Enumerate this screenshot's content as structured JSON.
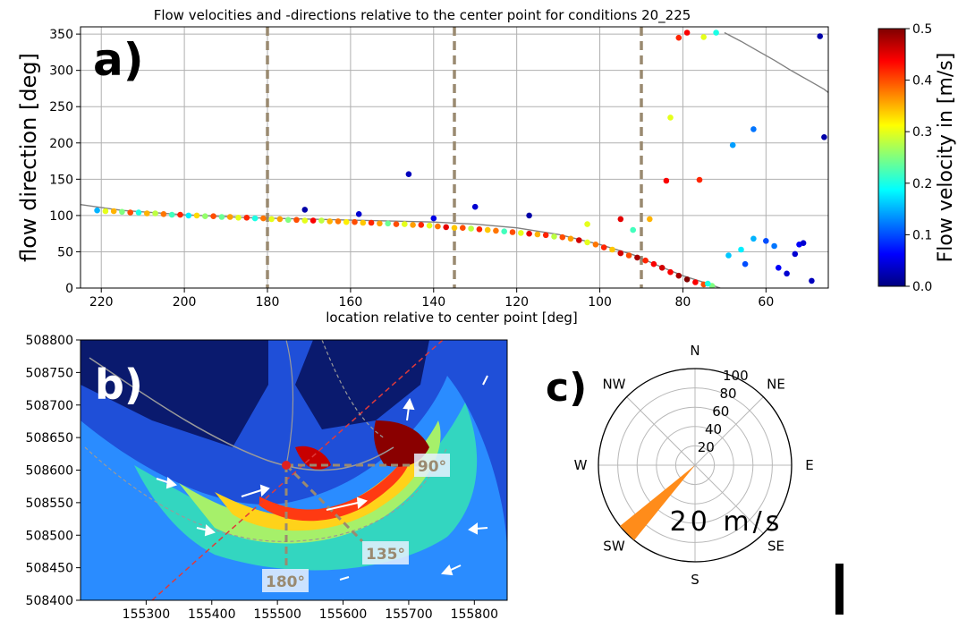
{
  "figure": {
    "panel_a_label": "a)",
    "panel_b_label": "b)",
    "panel_c_label": "c)"
  },
  "chart_data": [
    {
      "panel": "a",
      "type": "scatter",
      "title": "Flow velocities and -directions relative to the center point for conditions 20_225",
      "xlabel": "location relative to center point [deg]",
      "ylabel": "flow direction [deg]",
      "xlim": [
        225,
        45
      ],
      "ylim": [
        0,
        360
      ],
      "xticks": [
        220,
        200,
        180,
        160,
        140,
        120,
        100,
        80,
        60
      ],
      "yticks": [
        0,
        50,
        100,
        150,
        200,
        250,
        300,
        350
      ],
      "grid": true,
      "reference_lines_x": [
        180,
        135,
        90
      ],
      "curve_1": [
        [
          225,
          115
        ],
        [
          215,
          107
        ],
        [
          200,
          101
        ],
        [
          185,
          97
        ],
        [
          170,
          95
        ],
        [
          155,
          93
        ],
        [
          140,
          91
        ],
        [
          130,
          88
        ],
        [
          120,
          83
        ],
        [
          110,
          74
        ],
        [
          100,
          60
        ],
        [
          92,
          46
        ],
        [
          86,
          31
        ],
        [
          80,
          17
        ],
        [
          74,
          6
        ],
        [
          71,
          0
        ]
      ],
      "curve_2": [
        [
          70,
          352
        ],
        [
          66,
          340
        ],
        [
          62,
          327
        ],
        [
          58,
          314
        ],
        [
          54,
          300
        ],
        [
          50,
          287
        ],
        [
          46,
          274
        ],
        [
          44,
          265
        ]
      ],
      "colorbar": {
        "label": "Flow velocity in [m/s]",
        "min": 0.0,
        "max": 0.5,
        "ticks": [
          "0.0",
          "0.1",
          "0.2",
          "0.3",
          "0.4",
          "0.5"
        ],
        "colormap": "jet"
      },
      "points": [
        [
          221,
          107,
          0.15
        ],
        [
          219,
          106,
          0.3
        ],
        [
          217,
          106,
          0.35
        ],
        [
          215,
          105,
          0.25
        ],
        [
          213,
          104,
          0.4
        ],
        [
          211,
          104,
          0.2
        ],
        [
          209,
          103,
          0.35
        ],
        [
          207,
          103,
          0.28
        ],
        [
          205,
          102,
          0.38
        ],
        [
          203,
          101,
          0.22
        ],
        [
          201,
          101,
          0.42
        ],
        [
          199,
          100,
          0.18
        ],
        [
          197,
          100,
          0.33
        ],
        [
          195,
          99,
          0.26
        ],
        [
          193,
          99,
          0.4
        ],
        [
          191,
          98,
          0.24
        ],
        [
          189,
          98,
          0.36
        ],
        [
          187,
          97,
          0.3
        ],
        [
          185,
          97,
          0.42
        ],
        [
          183,
          96,
          0.2
        ],
        [
          181,
          96,
          0.38
        ],
        [
          179,
          95,
          0.3
        ],
        [
          177,
          95,
          0.36
        ],
        [
          175,
          94,
          0.25
        ],
        [
          173,
          94,
          0.4
        ],
        [
          171,
          93,
          0.3
        ],
        [
          169,
          93,
          0.44
        ],
        [
          167,
          93,
          0.28
        ],
        [
          165,
          92,
          0.35
        ],
        [
          163,
          92,
          0.38
        ],
        [
          161,
          91,
          0.32
        ],
        [
          159,
          91,
          0.4
        ],
        [
          157,
          90,
          0.34
        ],
        [
          155,
          90,
          0.42
        ],
        [
          153,
          89,
          0.36
        ],
        [
          151,
          89,
          0.24
        ],
        [
          149,
          88,
          0.4
        ],
        [
          147,
          88,
          0.3
        ],
        [
          145,
          87,
          0.36
        ],
        [
          143,
          87,
          0.42
        ],
        [
          141,
          86,
          0.3
        ],
        [
          139,
          85,
          0.38
        ],
        [
          137,
          84,
          0.45
        ],
        [
          135,
          83,
          0.34
        ],
        [
          133,
          83,
          0.4
        ],
        [
          131,
          82,
          0.28
        ],
        [
          129,
          81,
          0.42
        ],
        [
          127,
          80,
          0.34
        ],
        [
          125,
          79,
          0.38
        ],
        [
          123,
          78,
          0.22
        ],
        [
          121,
          77,
          0.4
        ],
        [
          119,
          76,
          0.3
        ],
        [
          117,
          75,
          0.45
        ],
        [
          115,
          74,
          0.35
        ],
        [
          113,
          73,
          0.42
        ],
        [
          111,
          71,
          0.28
        ],
        [
          109,
          70,
          0.4
        ],
        [
          107,
          68,
          0.36
        ],
        [
          105,
          66,
          0.46
        ],
        [
          103,
          63,
          0.3
        ],
        [
          101,
          60,
          0.38
        ],
        [
          99,
          56,
          0.42
        ],
        [
          97,
          53,
          0.34
        ],
        [
          95,
          48,
          0.46
        ],
        [
          93,
          45,
          0.4
        ],
        [
          91,
          42,
          0.48
        ],
        [
          89,
          38,
          0.42
        ],
        [
          87,
          33,
          0.44
        ],
        [
          85,
          28,
          0.46
        ],
        [
          83,
          22,
          0.44
        ],
        [
          81,
          17,
          0.48
        ],
        [
          79,
          12,
          0.5
        ],
        [
          77,
          8,
          0.44
        ],
        [
          75,
          5,
          0.4
        ],
        [
          73,
          3,
          0.25
        ],
        [
          171,
          108,
          0.02
        ],
        [
          158,
          102,
          0.04
        ],
        [
          146,
          157,
          0.03
        ],
        [
          140,
          96,
          0.05
        ],
        [
          130,
          112,
          0.04
        ],
        [
          117,
          100,
          0.02
        ],
        [
          103,
          88,
          0.3
        ],
        [
          95,
          95,
          0.45
        ],
        [
          92,
          80,
          0.22
        ],
        [
          88,
          95,
          0.35
        ],
        [
          83,
          235,
          0.3
        ],
        [
          81,
          345,
          0.42
        ],
        [
          79,
          352,
          0.44
        ],
        [
          75,
          346,
          0.3
        ],
        [
          72,
          352,
          0.2
        ],
        [
          84,
          148,
          0.44
        ],
        [
          76,
          149,
          0.42
        ],
        [
          68,
          197,
          0.14
        ],
        [
          63,
          219,
          0.12
        ],
        [
          66,
          53,
          0.18
        ],
        [
          63,
          68,
          0.15
        ],
        [
          60,
          65,
          0.1
        ],
        [
          58,
          58,
          0.12
        ],
        [
          57,
          28,
          0.06
        ],
        [
          55,
          20,
          0.04
        ],
        [
          53,
          47,
          0.04
        ],
        [
          52,
          60,
          0.06
        ],
        [
          51,
          62,
          0.04
        ],
        [
          49,
          10,
          0.03
        ],
        [
          65,
          33,
          0.1
        ],
        [
          69,
          45,
          0.16
        ],
        [
          74,
          6,
          0.2
        ],
        [
          47,
          347,
          0.02
        ],
        [
          46,
          208,
          0.02
        ]
      ]
    },
    {
      "panel": "b",
      "type": "heatmap",
      "xticks": [
        "155300",
        "155400",
        "155500",
        "155600",
        "155700",
        "155800"
      ],
      "yticks": [
        "508800",
        "508750",
        "508700",
        "508650",
        "508600",
        "508550",
        "508500",
        "508450",
        "508400"
      ],
      "xlim": [
        155200,
        155850
      ],
      "ylim": [
        508400,
        508800
      ],
      "annotations": [
        "90°",
        "135°",
        "180°"
      ]
    },
    {
      "panel": "c",
      "type": "polar",
      "directions": [
        "N",
        "NE",
        "E",
        "SE",
        "S",
        "SW",
        "W",
        "NW"
      ],
      "radial_ticks": [
        "20",
        "40",
        "60",
        "80",
        "100"
      ],
      "wind_direction_deg": 225,
      "value_label": "20 m/s",
      "color": "#ff8c1a"
    }
  ]
}
